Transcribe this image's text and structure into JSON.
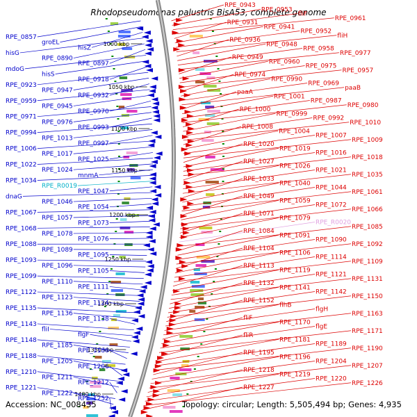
{
  "title": "Rhodopseudomonas palustris BisA53, complete genome",
  "footer": {
    "accession": "Accession: NC_008435",
    "summary": "Topology: circular; Length: 5,505,494 bp; Genes: 4,935"
  },
  "colors": {
    "reverse_strand": "#0000cc",
    "forward_strand": "#dd0000",
    "rna_gene": "#00b0c8",
    "pseudo_gene": "#e0a0e0",
    "ticks": "#008800",
    "backbone": "#888888"
  },
  "scale_ticks": [
    "1000 kbp",
    "1050 kbp",
    "1100 kbp",
    "1150 kbp",
    "1200 kbp",
    "1250 kbp",
    "1300 kbp",
    "1350 kbp",
    "1400 kbp"
  ],
  "left_labels": [
    {
      "text": "RPE_0857"
    },
    {
      "text": "groEL"
    },
    {
      "text": "hisZ"
    },
    {
      "text": "hisG"
    },
    {
      "text": "RPE_0890"
    },
    {
      "text": "RPE_0897"
    },
    {
      "text": "mdoG"
    },
    {
      "text": "hisS"
    },
    {
      "text": "RPE_0918"
    },
    {
      "text": "RPE_0923"
    },
    {
      "text": "RPE_0947"
    },
    {
      "text": "RPE_0932"
    },
    {
      "text": "RPE_0959"
    },
    {
      "text": "RPE_0945"
    },
    {
      "text": "RPE_0970"
    },
    {
      "text": "RPE_0971"
    },
    {
      "text": "RPE_0976"
    },
    {
      "text": "RPE_0993"
    },
    {
      "text": "RPE_0994"
    },
    {
      "text": "RPE_1013"
    },
    {
      "text": "RPE_0997"
    },
    {
      "text": "RPE_1006"
    },
    {
      "text": "RPE_1017"
    },
    {
      "text": "RPE_1025"
    },
    {
      "text": "RPE_1022"
    },
    {
      "text": "RPE_1024"
    },
    {
      "text": "mnmA"
    },
    {
      "text": "RPE_1034"
    },
    {
      "text": "RPE_R0019",
      "type": "rna"
    },
    {
      "text": "RPE_1047"
    },
    {
      "text": "dnaG"
    },
    {
      "text": "RPE_1046"
    },
    {
      "text": "RPE_1054"
    },
    {
      "text": "RPE_1067"
    },
    {
      "text": "RPE_1057"
    },
    {
      "text": "RPE_1073"
    },
    {
      "text": "RPE_1068"
    },
    {
      "text": "RPE_1078"
    },
    {
      "text": "RPE_1076"
    },
    {
      "text": "RPE_1088"
    },
    {
      "text": "RPE_1089"
    },
    {
      "text": "RPE_1095"
    },
    {
      "text": "RPE_1093"
    },
    {
      "text": "RPE_1096"
    },
    {
      "text": "RPE_1105"
    },
    {
      "text": "RPE_1099"
    },
    {
      "text": "RPE_1110"
    },
    {
      "text": "RPE_1111"
    },
    {
      "text": "RPE_1122"
    },
    {
      "text": "RPE_1123"
    },
    {
      "text": "RPE_1124"
    },
    {
      "text": "RPE_1135"
    },
    {
      "text": "RPE_1136"
    },
    {
      "text": "RPE_1138"
    },
    {
      "text": "RPE_1143"
    },
    {
      "text": "fliI"
    },
    {
      "text": "flgF"
    },
    {
      "text": "RPE_1148"
    },
    {
      "text": "RPE_1185"
    },
    {
      "text": "RPE_1186"
    },
    {
      "text": "RPE_1188"
    },
    {
      "text": "RPE_1205"
    },
    {
      "text": "RPE_1206"
    },
    {
      "text": "RPE_1210"
    },
    {
      "text": "RPE_1211"
    },
    {
      "text": "RPE_1212"
    },
    {
      "text": "RPE_1221"
    },
    {
      "text": "RPE_1222"
    },
    {
      "text": "RPE_1252"
    }
  ],
  "right_labels": [
    {
      "text": "RPE_0943"
    },
    {
      "text": "RPE_0953"
    },
    {
      "text": "fliF"
    },
    {
      "text": "RPE_0961"
    },
    {
      "text": "RPE_0931"
    },
    {
      "text": "RPE_0941"
    },
    {
      "text": "RPE_0952"
    },
    {
      "text": "fliH"
    },
    {
      "text": "RPE_0936"
    },
    {
      "text": "RPE_0948"
    },
    {
      "text": "RPE_0958"
    },
    {
      "text": "RPE_0977"
    },
    {
      "text": "RPE_0949"
    },
    {
      "text": "RPE_0960"
    },
    {
      "text": "RPE_0975"
    },
    {
      "text": "RPE_0957"
    },
    {
      "text": "RPE_0974"
    },
    {
      "text": "RPE_0990"
    },
    {
      "text": "RPE_0969"
    },
    {
      "text": "paaB"
    },
    {
      "text": "paaA"
    },
    {
      "text": "RPE_1001"
    },
    {
      "text": "RPE_0987"
    },
    {
      "text": "RPE_0980"
    },
    {
      "text": "RPE_1000"
    },
    {
      "text": "RPE_0999"
    },
    {
      "text": "RPE_0992"
    },
    {
      "text": "RPE_1010"
    },
    {
      "text": "RPE_1008"
    },
    {
      "text": "RPE_1004"
    },
    {
      "text": "RPE_1007"
    },
    {
      "text": "RPE_1009"
    },
    {
      "text": "RPE_1020"
    },
    {
      "text": "RPE_1019"
    },
    {
      "text": "RPE_1016"
    },
    {
      "text": "RPE_1018"
    },
    {
      "text": "RPE_1027"
    },
    {
      "text": "RPE_1026"
    },
    {
      "text": "RPE_1021"
    },
    {
      "text": "RPE_1035"
    },
    {
      "text": "RPE_1033"
    },
    {
      "text": "RPE_1040"
    },
    {
      "text": "RPE_1044"
    },
    {
      "text": "RPE_1061"
    },
    {
      "text": "RPE_1049"
    },
    {
      "text": "RPE_1059"
    },
    {
      "text": "RPE_1072"
    },
    {
      "text": "RPE_1066"
    },
    {
      "text": "RPE_1071"
    },
    {
      "text": "RPE_1079"
    },
    {
      "text": "RPE_R0020",
      "type": "pseudo"
    },
    {
      "text": "RPE_1085"
    },
    {
      "text": "RPE_1084"
    },
    {
      "text": "RPE_1091"
    },
    {
      "text": "RPE_1090"
    },
    {
      "text": "RPE_1092"
    },
    {
      "text": "RPE_1104"
    },
    {
      "text": "RPE_1106"
    },
    {
      "text": "RPE_1114"
    },
    {
      "text": "RPE_1109"
    },
    {
      "text": "RPE_1113"
    },
    {
      "text": "RPE_1119"
    },
    {
      "text": "RPE_1121"
    },
    {
      "text": "RPE_1131"
    },
    {
      "text": "RPE_1132"
    },
    {
      "text": "RPE_1141"
    },
    {
      "text": "RPE_1142"
    },
    {
      "text": "RPE_1150"
    },
    {
      "text": "RPE_1152"
    },
    {
      "text": "flhB"
    },
    {
      "text": "flgH"
    },
    {
      "text": "RPE_1163"
    },
    {
      "text": "fliF"
    },
    {
      "text": "RPE_1170"
    },
    {
      "text": "flgE"
    },
    {
      "text": "RPE_1171"
    },
    {
      "text": "fliR"
    },
    {
      "text": "RPE_1181"
    },
    {
      "text": "RPE_1189"
    },
    {
      "text": "RPE_1190"
    },
    {
      "text": "RPE_1195"
    },
    {
      "text": "RPE_1196"
    },
    {
      "text": "RPE_1204"
    },
    {
      "text": "RPE_1207"
    },
    {
      "text": "RPE_1218"
    },
    {
      "text": "RPE_1219"
    },
    {
      "text": "RPE_1220"
    },
    {
      "text": "RPE_1226"
    },
    {
      "text": "RPE_1227"
    }
  ]
}
